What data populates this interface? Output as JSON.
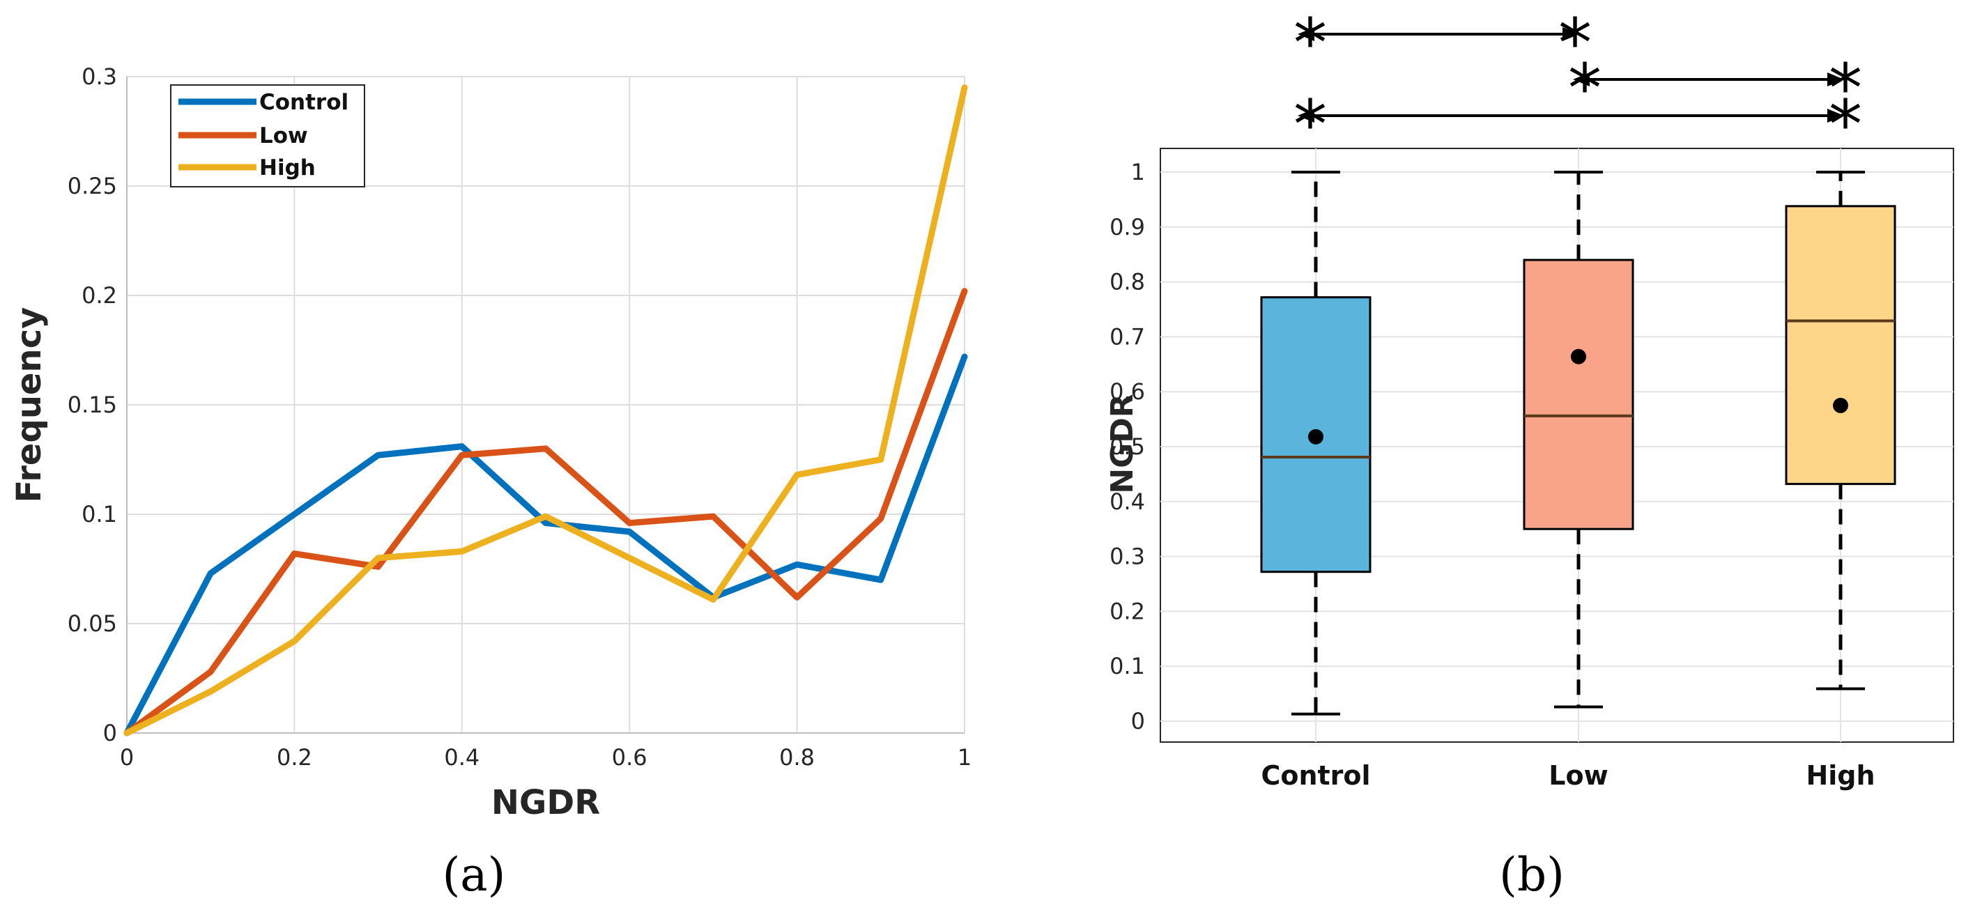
{
  "chart_data": [
    {
      "type": "line",
      "panel_label": "(a)",
      "xlabel": "NGDR",
      "ylabel": "Frequency",
      "xlim": [
        0,
        1
      ],
      "ylim": [
        0,
        0.3
      ],
      "grid": true,
      "legend_location": "top-left",
      "x": [
        0,
        0.1,
        0.2,
        0.3,
        0.4,
        0.5,
        0.6,
        0.7,
        0.8,
        0.9,
        1.0
      ],
      "xticks": [
        "0",
        "0.2",
        "0.4",
        "0.6",
        "0.8",
        "1"
      ],
      "yticks": [
        "0",
        "0.05",
        "0.1",
        "0.15",
        "0.2",
        "0.25",
        "0.3"
      ],
      "series": [
        {
          "name": "Control",
          "color": "#0072BD",
          "values": [
            0,
            0.073,
            0.1,
            0.127,
            0.131,
            0.096,
            0.092,
            0.062,
            0.077,
            0.07,
            0.172
          ]
        },
        {
          "name": "Low",
          "color": "#D95319",
          "values": [
            0,
            0.028,
            0.082,
            0.076,
            0.127,
            0.13,
            0.096,
            0.099,
            0.062,
            0.098,
            0.202
          ]
        },
        {
          "name": "High",
          "color": "#EDB120",
          "values": [
            0,
            0.019,
            0.042,
            0.08,
            0.083,
            0.099,
            0.08,
            0.061,
            0.118,
            0.125,
            0.295
          ]
        }
      ]
    },
    {
      "type": "box",
      "panel_label": "(b)",
      "ylabel": "NGDR",
      "ylim": [
        0,
        1
      ],
      "grid": true,
      "categories": [
        "Control",
        "Low",
        "High"
      ],
      "yticks": [
        "0",
        "0.1",
        "0.2",
        "0.3",
        "0.4",
        "0.5",
        "0.6",
        "0.7",
        "0.8",
        "0.9",
        "1"
      ],
      "boxes": [
        {
          "name": "Control",
          "color": "#5AB4DC",
          "whisker_low": 0.013,
          "q1": 0.272,
          "median": 0.481,
          "q3": 0.772,
          "whisker_high": 1.0,
          "mean": 0.518
        },
        {
          "name": "Low",
          "color": "#F9A489",
          "whisker_low": 0.026,
          "q1": 0.35,
          "median": 0.556,
          "q3": 0.84,
          "whisker_high": 1.0,
          "mean": 0.664
        },
        {
          "name": "High",
          "color": "#FDD68A",
          "whisker_low": 0.059,
          "q1": 0.432,
          "median": 0.729,
          "q3": 0.938,
          "whisker_high": 1.0,
          "mean": 0.575
        }
      ],
      "significance": [
        {
          "from": "Control",
          "to": "Low",
          "marker": "*"
        },
        {
          "from": "Low",
          "to": "High",
          "marker": "*"
        },
        {
          "from": "Control",
          "to": "High",
          "marker": "*"
        }
      ]
    }
  ]
}
